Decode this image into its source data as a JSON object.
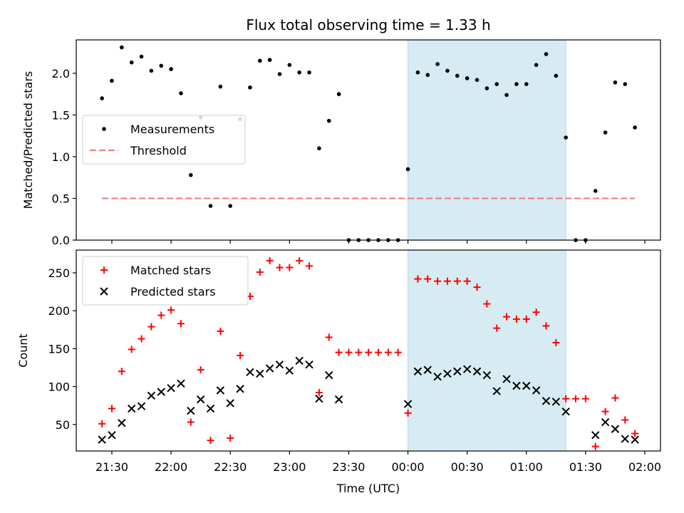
{
  "chart_data": {
    "type": "scatter",
    "title": "Flux total observing time = 1.33 h",
    "xlabel": "Time (UTC)",
    "x_tick_labels": [
      "21:30",
      "22:00",
      "22:30",
      "23:00",
      "23:30",
      "00:00",
      "00:30",
      "01:00",
      "01:30",
      "02:00"
    ],
    "highlight_span": {
      "start": "00:00",
      "end": "01:20",
      "color": "#add8e6"
    },
    "panels": [
      {
        "ylabel": "Matched/Predicted stars",
        "ylim": [
          0,
          2.4
        ],
        "y_ticks": [
          0.0,
          0.5,
          1.0,
          1.5,
          2.0
        ],
        "y_tick_labels": [
          "0.0",
          "0.5",
          "1.0",
          "1.5",
          "2.0"
        ],
        "legend_position": "center-left",
        "series": [
          {
            "name": "Measurements",
            "marker": "dot",
            "color": "#000000",
            "points": [
              [
                "21:25",
                1.7
              ],
              [
                "21:30",
                1.91
              ],
              [
                "21:35",
                2.31
              ],
              [
                "21:40",
                2.13
              ],
              [
                "21:45",
                2.2
              ],
              [
                "21:50",
                2.03
              ],
              [
                "21:55",
                2.09
              ],
              [
                "22:00",
                2.05
              ],
              [
                "22:05",
                1.76
              ],
              [
                "22:10",
                0.78
              ],
              [
                "22:15",
                1.47
              ],
              [
                "22:20",
                0.41
              ],
              [
                "22:25",
                1.84
              ],
              [
                "22:30",
                0.41
              ],
              [
                "22:35",
                1.45
              ],
              [
                "22:40",
                1.83
              ],
              [
                "22:45",
                2.15
              ],
              [
                "22:50",
                2.16
              ],
              [
                "22:55",
                1.99
              ],
              [
                "23:00",
                2.1
              ],
              [
                "23:05",
                2.01
              ],
              [
                "23:10",
                2.01
              ],
              [
                "23:15",
                1.1
              ],
              [
                "23:20",
                1.43
              ],
              [
                "23:25",
                1.75
              ],
              [
                "23:30",
                0.0
              ],
              [
                "23:35",
                0.0
              ],
              [
                "23:40",
                0.0
              ],
              [
                "23:45",
                0.0
              ],
              [
                "23:50",
                0.0
              ],
              [
                "23:55",
                0.0
              ],
              [
                "00:00",
                0.85
              ],
              [
                "00:05",
                2.01
              ],
              [
                "00:10",
                1.98
              ],
              [
                "00:15",
                2.11
              ],
              [
                "00:20",
                2.03
              ],
              [
                "00:25",
                1.97
              ],
              [
                "00:30",
                1.94
              ],
              [
                "00:35",
                1.92
              ],
              [
                "00:40",
                1.82
              ],
              [
                "00:45",
                1.87
              ],
              [
                "00:50",
                1.74
              ],
              [
                "00:55",
                1.87
              ],
              [
                "01:00",
                1.87
              ],
              [
                "01:05",
                2.1
              ],
              [
                "01:10",
                2.23
              ],
              [
                "01:15",
                1.97
              ],
              [
                "01:20",
                1.23
              ],
              [
                "01:25",
                0.0
              ],
              [
                "01:30",
                0.0
              ],
              [
                "01:35",
                0.59
              ],
              [
                "01:40",
                1.29
              ],
              [
                "01:45",
                1.89
              ],
              [
                "01:50",
                1.87
              ],
              [
                "01:55",
                1.35
              ]
            ]
          },
          {
            "name": "Threshold",
            "line_style": "dashed",
            "color": "#f08080",
            "x_range": [
              "21:25",
              "01:55"
            ],
            "value": 0.5
          }
        ]
      },
      {
        "ylabel": "Count",
        "ylim": [
          15,
          280
        ],
        "y_ticks": [
          50,
          100,
          150,
          200,
          250
        ],
        "y_tick_labels": [
          "50",
          "100",
          "150",
          "200",
          "250"
        ],
        "legend_position": "top-left",
        "series": [
          {
            "name": "Matched stars",
            "marker": "plus",
            "color": "#ff0000",
            "points": [
              [
                "21:25",
                51
              ],
              [
                "21:30",
                71
              ],
              [
                "21:35",
                120
              ],
              [
                "21:40",
                149
              ],
              [
                "21:45",
                163
              ],
              [
                "21:50",
                179
              ],
              [
                "21:55",
                194
              ],
              [
                "22:00",
                201
              ],
              [
                "22:05",
                183
              ],
              [
                "22:10",
                53
              ],
              [
                "22:15",
                122
              ],
              [
                "22:20",
                29
              ],
              [
                "22:25",
                173
              ],
              [
                "22:30",
                32
              ],
              [
                "22:35",
                141
              ],
              [
                "22:40",
                219
              ],
              [
                "22:45",
                251
              ],
              [
                "22:50",
                266
              ],
              [
                "22:55",
                257
              ],
              [
                "23:00",
                257
              ],
              [
                "23:05",
                266
              ],
              [
                "23:10",
                259
              ],
              [
                "23:15",
                92
              ],
              [
                "23:20",
                165
              ],
              [
                "23:25",
                145
              ],
              [
                "23:30",
                145
              ],
              [
                "23:35",
                145
              ],
              [
                "23:40",
                145
              ],
              [
                "23:45",
                145
              ],
              [
                "23:50",
                145
              ],
              [
                "23:55",
                145
              ],
              [
                "00:00",
                65
              ],
              [
                "00:05",
                242
              ],
              [
                "00:10",
                242
              ],
              [
                "00:15",
                239
              ],
              [
                "00:20",
                239
              ],
              [
                "00:25",
                239
              ],
              [
                "00:30",
                239
              ],
              [
                "00:35",
                231
              ],
              [
                "00:40",
                209
              ],
              [
                "00:45",
                177
              ],
              [
                "00:50",
                192
              ],
              [
                "00:55",
                189
              ],
              [
                "01:00",
                189
              ],
              [
                "01:05",
                198
              ],
              [
                "01:10",
                180
              ],
              [
                "01:15",
                158
              ],
              [
                "01:20",
                84
              ],
              [
                "01:25",
                84
              ],
              [
                "01:30",
                84
              ],
              [
                "01:35",
                21
              ],
              [
                "01:40",
                67
              ],
              [
                "01:45",
                85
              ],
              [
                "01:50",
                56
              ],
              [
                "01:55",
                38
              ]
            ]
          },
          {
            "name": "Predicted stars",
            "marker": "x",
            "color": "#000000",
            "points": [
              [
                "21:25",
                30
              ],
              [
                "21:30",
                36
              ],
              [
                "21:35",
                52
              ],
              [
                "21:40",
                71
              ],
              [
                "21:45",
                74
              ],
              [
                "21:50",
                88
              ],
              [
                "21:55",
                93
              ],
              [
                "22:00",
                98
              ],
              [
                "22:05",
                104
              ],
              [
                "22:10",
                68
              ],
              [
                "22:15",
                83
              ],
              [
                "22:20",
                71
              ],
              [
                "22:25",
                95
              ],
              [
                "22:30",
                78
              ],
              [
                "22:35",
                97
              ],
              [
                "22:40",
                119
              ],
              [
                "22:45",
                117
              ],
              [
                "22:50",
                124
              ],
              [
                "22:55",
                129
              ],
              [
                "23:00",
                121
              ],
              [
                "23:05",
                134
              ],
              [
                "23:10",
                129
              ],
              [
                "23:15",
                84
              ],
              [
                "23:20",
                115
              ],
              [
                "23:25",
                83
              ],
              [
                "00:00",
                77
              ],
              [
                "00:05",
                120
              ],
              [
                "00:10",
                122
              ],
              [
                "00:15",
                113
              ],
              [
                "00:20",
                117
              ],
              [
                "00:25",
                120
              ],
              [
                "00:30",
                123
              ],
              [
                "00:35",
                120
              ],
              [
                "00:40",
                115
              ],
              [
                "00:45",
                94
              ],
              [
                "00:50",
                110
              ],
              [
                "00:55",
                101
              ],
              [
                "01:00",
                101
              ],
              [
                "01:05",
                95
              ],
              [
                "01:10",
                81
              ],
              [
                "01:15",
                80
              ],
              [
                "01:20",
                67
              ],
              [
                "01:35",
                36
              ],
              [
                "01:40",
                53
              ],
              [
                "01:45",
                44
              ],
              [
                "01:50",
                31
              ],
              [
                "01:55",
                30
              ]
            ]
          }
        ]
      }
    ]
  }
}
